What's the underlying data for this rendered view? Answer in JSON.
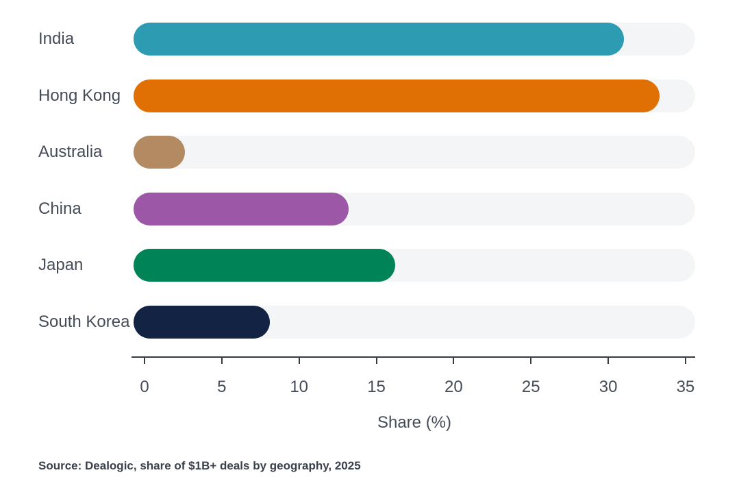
{
  "chart_data": {
    "type": "bar",
    "orientation": "horizontal",
    "title": "",
    "categories": [
      "India",
      "Hong Kong",
      "Australia",
      "China",
      "Japan",
      "South Korea"
    ],
    "values": [
      31,
      33.3,
      2.6,
      13.2,
      16.2,
      8.1
    ],
    "bar_colors": [
      "#2d9bb1",
      "#e07004",
      "#b38a62",
      "#9c58a6",
      "#008457",
      "#122344"
    ],
    "track_color": "#f3f5f7",
    "xlabel": "Share (%)",
    "ylabel": "",
    "xticks": [
      0,
      5,
      10,
      15,
      20,
      25,
      30,
      35
    ],
    "xlim": [
      0,
      35
    ],
    "grid": false,
    "legend": false
  },
  "source_note": "Source: Dealogic, share of $1B+ deals by geography, 2025",
  "colors": {
    "text": "#454c58",
    "axis": "#343b45",
    "background": "#ffffff"
  }
}
